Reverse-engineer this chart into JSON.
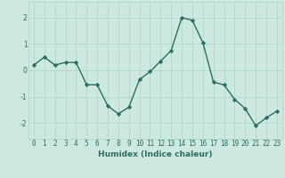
{
  "xlabel": "Humidex (Indice chaleur)",
  "ylabel": "",
  "x": [
    0,
    1,
    2,
    3,
    4,
    5,
    6,
    7,
    8,
    9,
    10,
    11,
    12,
    13,
    14,
    15,
    16,
    17,
    18,
    19,
    20,
    21,
    22,
    23
  ],
  "y": [
    0.2,
    0.5,
    0.2,
    0.3,
    0.3,
    -0.55,
    -0.55,
    -1.35,
    -1.65,
    -1.4,
    -0.35,
    -0.05,
    0.35,
    0.75,
    2.0,
    1.9,
    1.05,
    -0.45,
    -0.55,
    -1.1,
    -1.45,
    -2.1,
    -1.8,
    -1.55
  ],
  "line_color": "#2a6e62",
  "marker": "D",
  "marker_size": 2.2,
  "line_width": 1.0,
  "background_color": "#cce8e0",
  "grid_color": "#aad4ca",
  "tick_color": "#2a6e62",
  "label_color": "#2a6e62",
  "ylim": [
    -2.6,
    2.6
  ],
  "xlim": [
    -0.5,
    23.5
  ],
  "yticks": [
    -2,
    -1,
    0,
    1,
    2
  ],
  "xticks": [
    0,
    1,
    2,
    3,
    4,
    5,
    6,
    7,
    8,
    9,
    10,
    11,
    12,
    13,
    14,
    15,
    16,
    17,
    18,
    19,
    20,
    21,
    22,
    23
  ],
  "axis_fontsize": 6.5,
  "tick_fontsize": 5.5,
  "xlabel_fontsize": 6.5
}
